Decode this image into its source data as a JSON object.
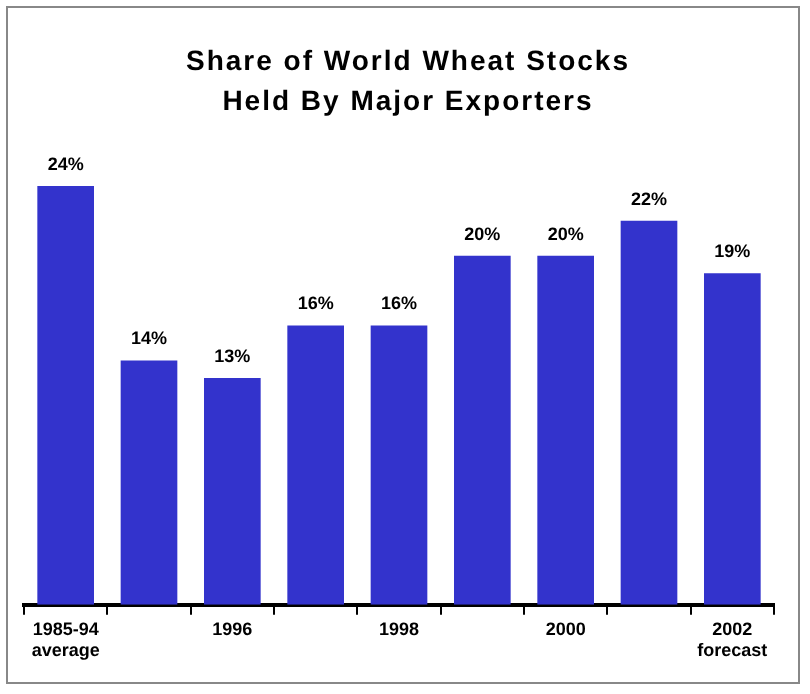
{
  "chart_data": {
    "type": "bar",
    "title": "Share of World Wheat Stocks Held By Major Exporters",
    "categories": [
      "1985-94 average",
      null,
      "1996",
      null,
      "1998",
      null,
      "2000",
      null,
      "2002 forecast"
    ],
    "values": [
      24,
      14,
      13,
      16,
      16,
      20,
      20,
      22,
      19
    ],
    "value_labels": [
      "24%",
      "14%",
      "13%",
      "16%",
      "16%",
      "20%",
      "20%",
      "22%",
      "19%"
    ],
    "color": "#3333cc",
    "grid": false,
    "legend": false
  }
}
